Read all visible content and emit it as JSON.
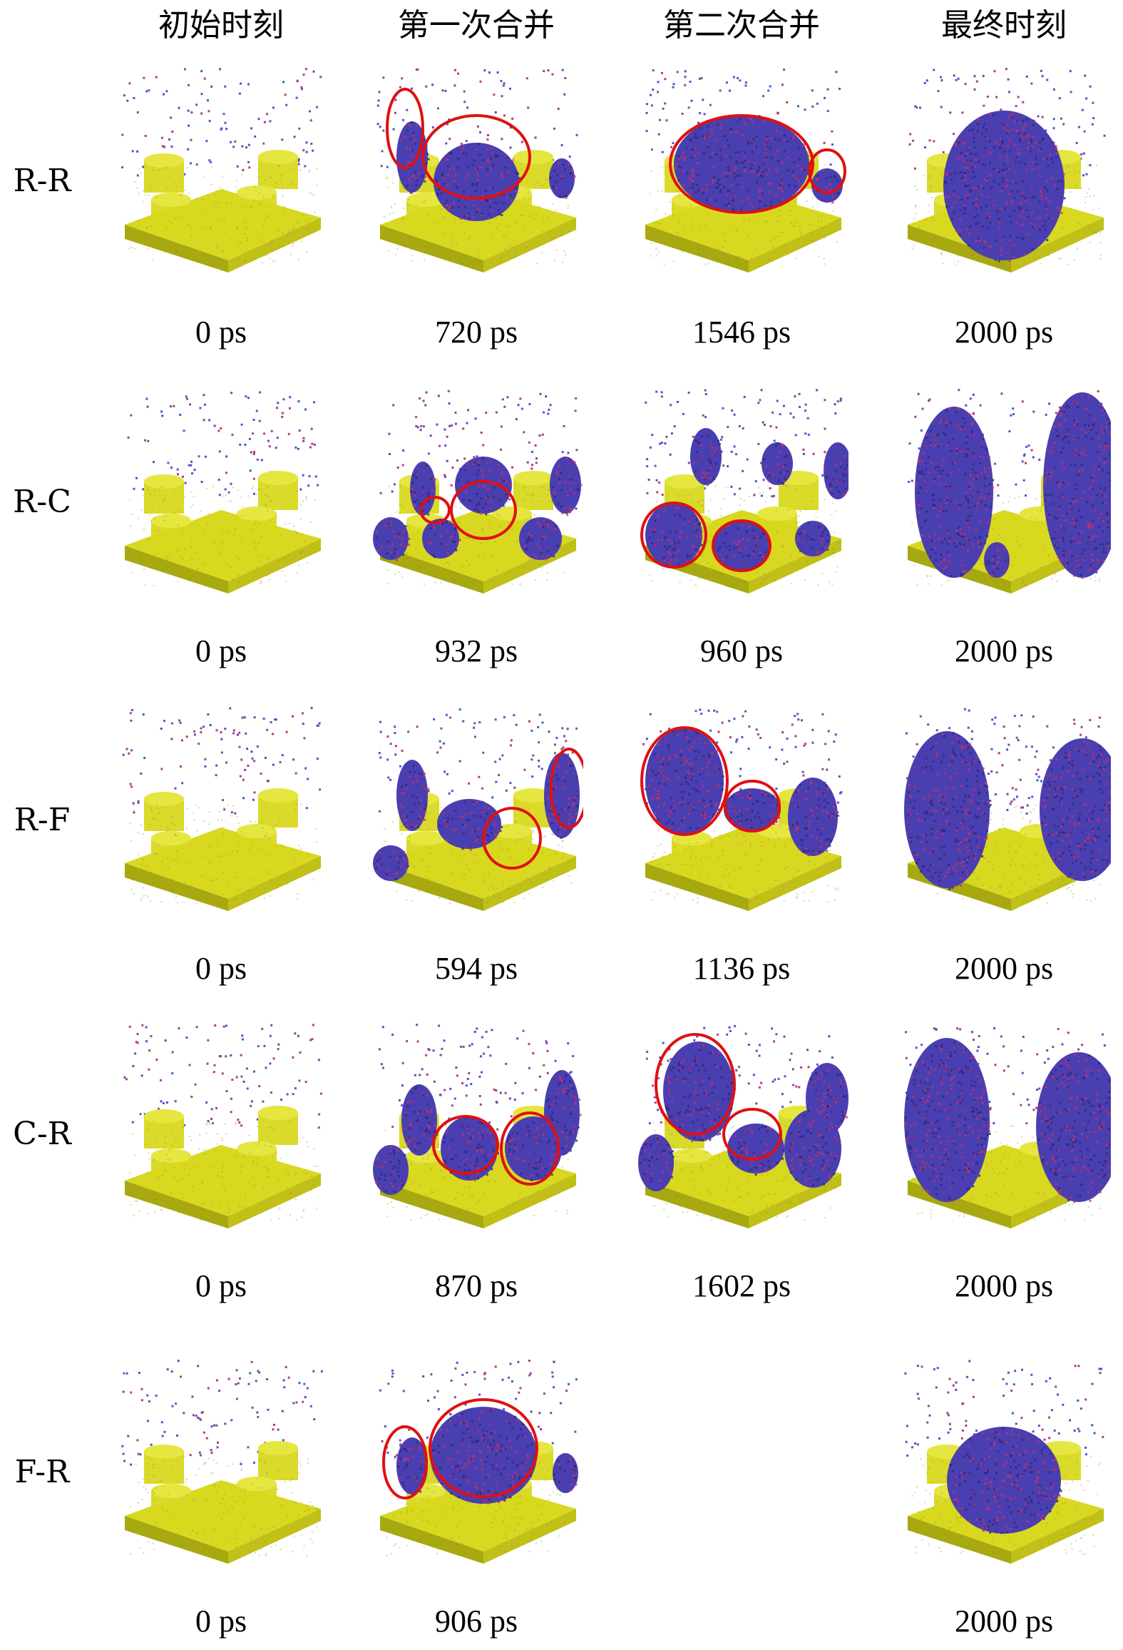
{
  "columns": [
    "初始时刻",
    "第一次合并",
    "第二次合并",
    "最终时刻"
  ],
  "rows": [
    {
      "label": "R-R",
      "times": [
        "0 ps",
        "720 ps",
        "1546 ps",
        "2000 ps"
      ]
    },
    {
      "label": "R-C",
      "times": [
        "0 ps",
        "932 ps",
        "960 ps",
        "2000 ps"
      ]
    },
    {
      "label": "R-F",
      "times": [
        "0 ps",
        "594 ps",
        "1136 ps",
        "2000 ps"
      ]
    },
    {
      "label": "C-R",
      "times": [
        "0 ps",
        "870 ps",
        "1602 ps",
        "2000 ps"
      ]
    },
    {
      "label": "F-R",
      "times": [
        "0 ps",
        "906 ps",
        "",
        "2000 ps"
      ]
    }
  ],
  "colors": {
    "substrate": "#d8d820",
    "substrate_shade": "#a8a810",
    "droplet": "#4a3fb0",
    "droplet_dark": "#2e2880",
    "circle": "#e01010"
  }
}
